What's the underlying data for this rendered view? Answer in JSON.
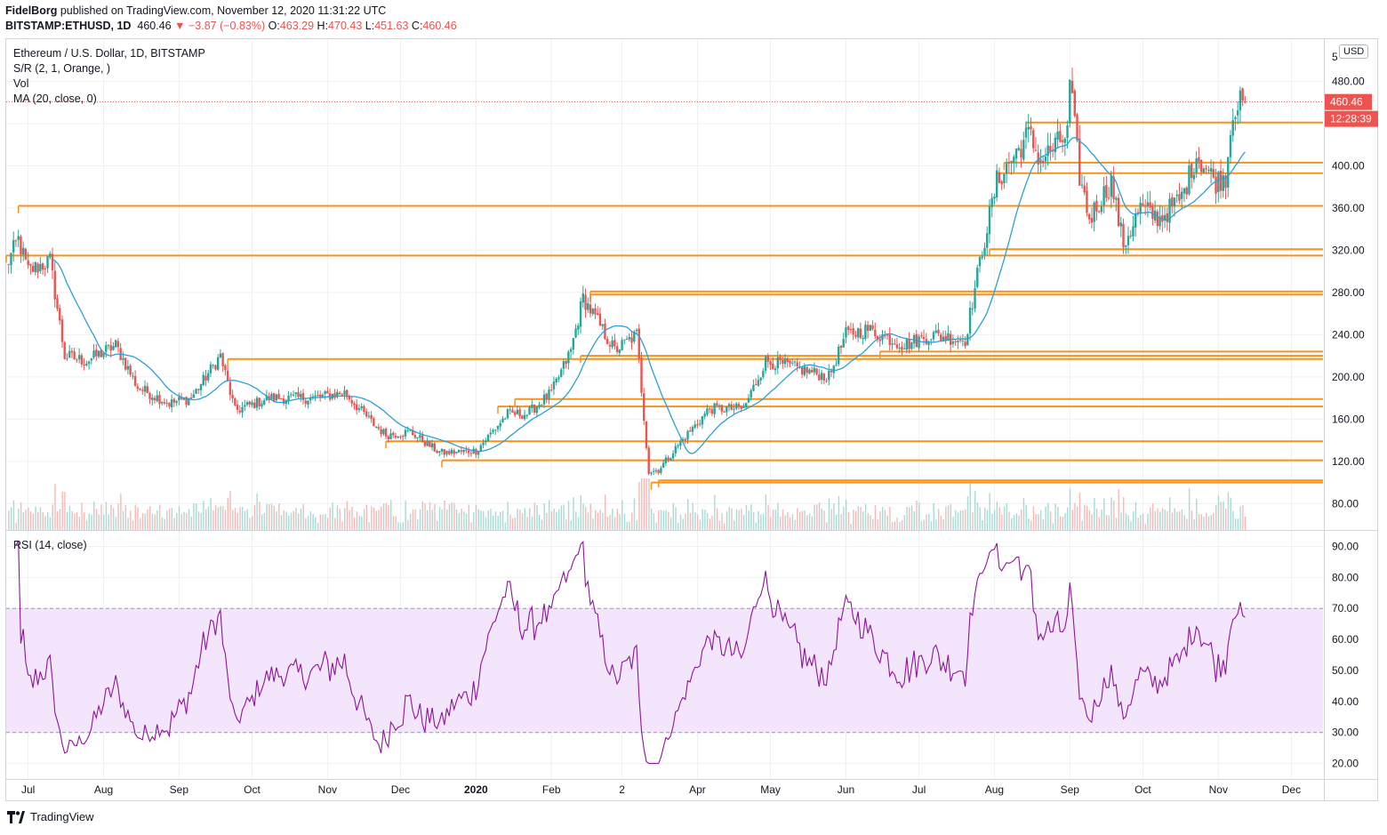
{
  "header": {
    "author": "FidelBorg",
    "published_text": "published on TradingView.com, November 12, 2020 11:31:22 UTC",
    "symbol": "BITSTAMP:ETHUSD, 1D",
    "last": "460.46",
    "change_arrow": "▼",
    "change": "−3.87 (−0.83%)",
    "o_label": "O:",
    "o": "463.29",
    "h_label": "H:",
    "h": "470.43",
    "l_label": "L:",
    "l": "451.63",
    "c_label": "C:",
    "c": "460.46"
  },
  "legend": {
    "title": "Ethereum / U.S. Dollar, 1D, BITSTAMP",
    "sr": "S/R (2, 1, Orange, )",
    "vol": "Vol",
    "ma": "MA (20, close, 0)",
    "rsi": "RSI (14, close)"
  },
  "price_axis": {
    "currency": "USD",
    "top_partial": "5",
    "last_price_tag": "460.46",
    "countdown_tag": "12:28:39"
  },
  "footer": {
    "brand": "TradingView",
    "logo_icon": "tradingview-logo-icon"
  },
  "colors": {
    "up": "#26a69a",
    "down": "#ef5350",
    "sr": "#f7931a",
    "ma": "#2e9fd6",
    "rsi": "#8e1599",
    "rsi_band": "#f3e5fb",
    "grid": "#eef0f3",
    "price_tag": "#ef5350"
  },
  "chart_data": [
    {
      "type": "candlestick",
      "title": "Ethereum / U.S. Dollar, 1D, BITSTAMP",
      "x_ticks": [
        "Jul",
        "Aug",
        "Sep",
        "Oct",
        "Nov",
        "Dec",
        "2020",
        "Feb",
        "2",
        "Apr",
        "May",
        "Jun",
        "Jul",
        "Aug",
        "Sep",
        "Oct",
        "Nov",
        "Dec"
      ],
      "y_ticks": [
        80,
        120,
        160,
        200,
        240,
        280,
        320,
        360,
        400,
        440,
        480
      ],
      "y_tick_labels": [
        "80.00",
        "120.00",
        "160.00",
        "200.00",
        "240.00",
        "280.00",
        "320.00",
        "360.00",
        "400.00",
        "",
        "480.00"
      ],
      "ylim": [
        55,
        520
      ],
      "log_scale": false,
      "grid": true,
      "start_date": "2019-06-22",
      "end_date": "2020-11-12",
      "last_close": 460.46,
      "anchors": [
        [
          "2019-06-22",
          305
        ],
        [
          "2019-06-27",
          330
        ],
        [
          "2019-07-01",
          300
        ],
        [
          "2019-07-10",
          310
        ],
        [
          "2019-07-16",
          220
        ],
        [
          "2019-07-25",
          215
        ],
        [
          "2019-08-06",
          230
        ],
        [
          "2019-08-15",
          190
        ],
        [
          "2019-08-28",
          175
        ],
        [
          "2019-09-06",
          180
        ],
        [
          "2019-09-18",
          220
        ],
        [
          "2019-09-24",
          168
        ],
        [
          "2019-10-08",
          180
        ],
        [
          "2019-10-26",
          180
        ],
        [
          "2019-11-08",
          185
        ],
        [
          "2019-11-20",
          155
        ],
        [
          "2019-11-25",
          145
        ],
        [
          "2019-12-05",
          148
        ],
        [
          "2019-12-16",
          130
        ],
        [
          "2019-12-18",
          128
        ],
        [
          "2020-01-01",
          130
        ],
        [
          "2020-01-14",
          165
        ],
        [
          "2020-01-22",
          165
        ],
        [
          "2020-02-01",
          185
        ],
        [
          "2020-02-09",
          225
        ],
        [
          "2020-02-14",
          275
        ],
        [
          "2020-02-27",
          225
        ],
        [
          "2020-03-07",
          240
        ],
        [
          "2020-03-12",
          110
        ],
        [
          "2020-03-16",
          112
        ],
        [
          "2020-03-25",
          138
        ],
        [
          "2020-04-06",
          170
        ],
        [
          "2020-04-20",
          170
        ],
        [
          "2020-04-29",
          215
        ],
        [
          "2020-05-09",
          210
        ],
        [
          "2020-05-25",
          200
        ],
        [
          "2020-06-01",
          240
        ],
        [
          "2020-06-10",
          245
        ],
        [
          "2020-06-25",
          230
        ],
        [
          "2020-07-06",
          240
        ],
        [
          "2020-07-20",
          235
        ],
        [
          "2020-07-27",
          320
        ],
        [
          "2020-08-02",
          385
        ],
        [
          "2020-08-15",
          430
        ],
        [
          "2020-08-20",
          405
        ],
        [
          "2020-08-31",
          430
        ],
        [
          "2020-09-01",
          480
        ],
        [
          "2020-09-05",
          390
        ],
        [
          "2020-09-09",
          350
        ],
        [
          "2020-09-18",
          385
        ],
        [
          "2020-09-23",
          325
        ],
        [
          "2020-09-30",
          360
        ],
        [
          "2020-10-08",
          350
        ],
        [
          "2020-10-17",
          370
        ],
        [
          "2020-10-23",
          410
        ],
        [
          "2020-10-31",
          385
        ],
        [
          "2020-11-04",
          390
        ],
        [
          "2020-11-07",
          455
        ],
        [
          "2020-11-12",
          460.46
        ]
      ],
      "ma_period": 20,
      "sr_levels": [
        {
          "price": 362,
          "from": "2019-06-27"
        },
        {
          "price": 315,
          "from": "2019-06-22"
        },
        {
          "price": 441,
          "from": "2020-08-14"
        },
        {
          "price": 403,
          "from": "2020-08-05"
        },
        {
          "price": 393,
          "from": "2020-08-02"
        },
        {
          "price": 321,
          "from": "2020-07-30"
        },
        {
          "price": 281,
          "from": "2020-02-17"
        },
        {
          "price": 278,
          "from": "2020-02-17"
        },
        {
          "price": 224,
          "from": "2020-06-15"
        },
        {
          "price": 220,
          "from": "2020-02-13"
        },
        {
          "price": 217,
          "from": "2019-09-21"
        },
        {
          "price": 179,
          "from": "2020-01-17"
        },
        {
          "price": 172,
          "from": "2020-01-10"
        },
        {
          "price": 139,
          "from": "2019-11-25"
        },
        {
          "price": 121,
          "from": "2019-12-18"
        },
        {
          "price": 102,
          "from": "2020-03-16"
        },
        {
          "price": 100,
          "from": "2020-03-13"
        }
      ]
    },
    {
      "type": "line",
      "title": "RSI (14, close)",
      "y_ticks": [
        20,
        30,
        40,
        50,
        60,
        70,
        80,
        90
      ],
      "ylim": [
        15,
        95
      ],
      "bands": [
        30,
        70
      ],
      "last_value": 66
    }
  ]
}
